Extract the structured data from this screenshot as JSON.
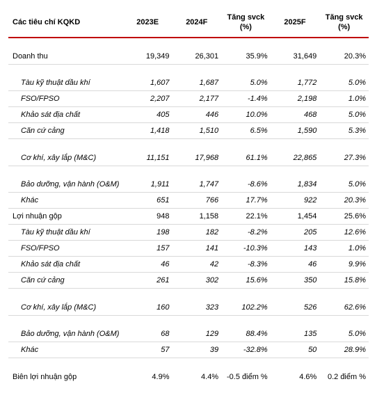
{
  "headers": {
    "metric": "Các tiêu chí KQKD",
    "y2023": "2023E",
    "y2024": "2024F",
    "g2024": "Tăng svck (%)",
    "y2025": "2025F",
    "g2025": "Tăng svck (%)"
  },
  "rows": [
    {
      "type": "spacer"
    },
    {
      "type": "section",
      "label": "Doanh thu",
      "v": [
        "19,349",
        "26,301",
        "35.9%",
        "31,649",
        "20.3%"
      ]
    },
    {
      "type": "spacer"
    },
    {
      "type": "sub",
      "label": "Tàu kỹ thuật dầu khí",
      "v": [
        "1,607",
        "1,687",
        "5.0%",
        "1,772",
        "5.0%"
      ]
    },
    {
      "type": "sub",
      "label": "FSO/FPSO",
      "v": [
        "2,207",
        "2,177",
        "-1.4%",
        "2,198",
        "1.0%"
      ]
    },
    {
      "type": "sub",
      "label": "Khảo sát địa chất",
      "v": [
        "405",
        "446",
        "10.0%",
        "468",
        "5.0%"
      ]
    },
    {
      "type": "sub",
      "label": "Căn cứ cảng",
      "v": [
        "1,418",
        "1,510",
        "6.5%",
        "1,590",
        "5.3%"
      ]
    },
    {
      "type": "spacer"
    },
    {
      "type": "sub",
      "label": "Cơ khí, xây lắp (M&C)",
      "v": [
        "11,151",
        "17,968",
        "61.1%",
        "22,865",
        "27.3%"
      ]
    },
    {
      "type": "spacer"
    },
    {
      "type": "sub",
      "label": "Bảo dưỡng, vận hành (O&M)",
      "v": [
        "1,911",
        "1,747",
        "-8.6%",
        "1,834",
        "5.0%"
      ]
    },
    {
      "type": "sub",
      "label": "Khác",
      "v": [
        "651",
        "766",
        "17.7%",
        "922",
        "20.3%"
      ]
    },
    {
      "type": "section",
      "label": "Lợi nhuận gộp",
      "v": [
        "948",
        "1,158",
        "22.1%",
        "1,454",
        "25.6%"
      ]
    },
    {
      "type": "sub",
      "label": "Tàu kỹ thuật dầu khí",
      "v": [
        "198",
        "182",
        "-8.2%",
        "205",
        "12.6%"
      ]
    },
    {
      "type": "sub",
      "label": "FSO/FPSO",
      "v": [
        "157",
        "141",
        "-10.3%",
        "143",
        "1.0%"
      ]
    },
    {
      "type": "sub",
      "label": "Khảo sát địa chất",
      "v": [
        "46",
        "42",
        "-8.3%",
        "46",
        "9.9%"
      ]
    },
    {
      "type": "sub",
      "label": "Căn cứ cảng",
      "v": [
        "261",
        "302",
        "15.6%",
        "350",
        "15.8%"
      ]
    },
    {
      "type": "spacer"
    },
    {
      "type": "sub",
      "label": "Cơ khí, xây lắp (M&C)",
      "v": [
        "160",
        "323",
        "102.2%",
        "526",
        "62.6%"
      ]
    },
    {
      "type": "spacer"
    },
    {
      "type": "sub",
      "label": "Bảo dưỡng, vận hành (O&M)",
      "v": [
        "68",
        "129",
        "88.4%",
        "135",
        "5.0%"
      ]
    },
    {
      "type": "sub",
      "label": "Khác",
      "v": [
        "57",
        "39",
        "-32.8%",
        "50",
        "28.9%"
      ]
    },
    {
      "type": "spacer"
    },
    {
      "type": "section",
      "noborder": true,
      "label": "Biên lợi nhuận gộp",
      "v": [
        "4.9%",
        "4.4%",
        "-0.5 điểm %",
        "4.6%",
        "0.2 điểm %"
      ]
    }
  ]
}
